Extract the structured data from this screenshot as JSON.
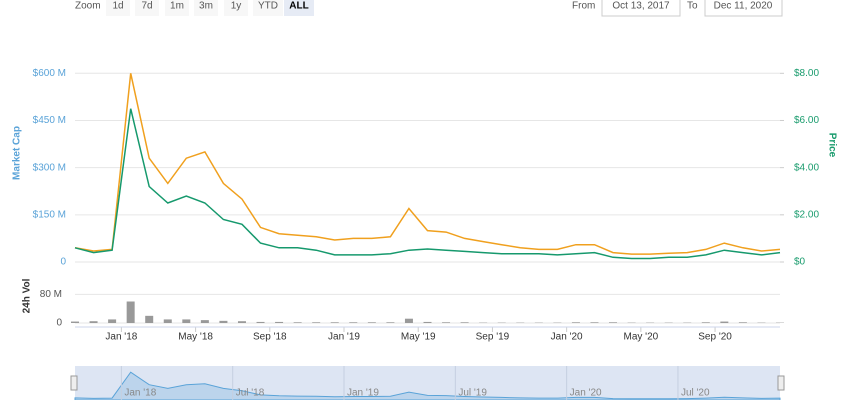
{
  "controls": {
    "zoom_label": "Zoom",
    "zoom_options": [
      "1d",
      "7d",
      "1m",
      "3m",
      "1y",
      "YTD",
      "ALL"
    ],
    "selected": "ALL",
    "from_label": "From",
    "from_value": "Oct 13, 2017",
    "to_label": "To",
    "to_value": "Dec 11, 2020"
  },
  "chart_data": [
    {
      "type": "line",
      "x": [
        "2017-10",
        "2017-11",
        "2017-12",
        "2018-01",
        "2018-02",
        "2018-03",
        "2018-04",
        "2018-05",
        "2018-06",
        "2018-07",
        "2018-08",
        "2018-09",
        "2018-10",
        "2018-11",
        "2018-12",
        "2019-01",
        "2019-02",
        "2019-03",
        "2019-04",
        "2019-05",
        "2019-06",
        "2019-07",
        "2019-08",
        "2019-09",
        "2019-10",
        "2019-11",
        "2019-12",
        "2020-01",
        "2020-02",
        "2020-03",
        "2020-04",
        "2020-05",
        "2020-06",
        "2020-07",
        "2020-08",
        "2020-09",
        "2020-10",
        "2020-11",
        "2020-12"
      ],
      "series": [
        {
          "color": "#f0a01e",
          "axis": "y",
          "values": [
            45,
            35,
            40,
            600,
            330,
            250,
            330,
            350,
            250,
            200,
            110,
            90,
            85,
            80,
            70,
            75,
            75,
            80,
            170,
            100,
            95,
            75,
            65,
            55,
            45,
            40,
            40,
            55,
            55,
            30,
            25,
            25,
            28,
            30,
            40,
            60,
            45,
            35,
            40
          ]
        },
        {
          "color": "#16996d",
          "axis": "y2",
          "values": [
            0.6,
            0.4,
            0.5,
            6.5,
            3.2,
            2.5,
            2.8,
            2.5,
            1.8,
            1.6,
            0.8,
            0.6,
            0.6,
            0.5,
            0.3,
            0.3,
            0.3,
            0.35,
            0.5,
            0.55,
            0.5,
            0.45,
            0.4,
            0.35,
            0.35,
            0.35,
            0.3,
            0.35,
            0.4,
            0.2,
            0.15,
            0.15,
            0.2,
            0.2,
            0.3,
            0.5,
            0.4,
            0.3,
            0.4
          ]
        }
      ],
      "y_label": "Market Cap",
      "y2_label": "Price",
      "ylim": [
        0,
        690
      ],
      "yticks": [
        0,
        {
          "value": 150,
          "label": "$150 M"
        },
        {
          "value": 300,
          "label": "$300 M"
        },
        {
          "value": 450,
          "label": "$450 M"
        },
        {
          "value": 600,
          "label": "$600 M"
        }
      ],
      "y2lim": [
        0,
        9.2
      ],
      "y2ticks": [
        {
          "value": 0,
          "label": "$0"
        },
        {
          "value": 2,
          "label": "$2.00"
        },
        {
          "value": 4,
          "label": "$4.00"
        },
        {
          "value": 6,
          "label": "$6.00"
        },
        {
          "value": 8,
          "label": "$8.00"
        }
      ],
      "xticks": [
        {
          "value": "2018-01",
          "label": "Jan '18"
        },
        {
          "value": "2018-05",
          "label": "May '18"
        },
        {
          "value": "2018-09",
          "label": "Sep '18"
        },
        {
          "value": "2019-01",
          "label": "Jan '19"
        },
        {
          "value": "2019-05",
          "label": "May '19"
        },
        {
          "value": "2019-09",
          "label": "Sep '19"
        },
        {
          "value": "2020-01",
          "label": "Jan '20"
        },
        {
          "value": "2020-05",
          "label": "May '20"
        },
        {
          "value": "2020-09",
          "label": "Sep '20"
        }
      ]
    },
    {
      "type": "bar",
      "y_label": "24h Vol",
      "color": "#999999",
      "x": [
        "2017-10",
        "2017-11",
        "2017-12",
        "2018-01",
        "2018-02",
        "2018-03",
        "2018-04",
        "2018-05",
        "2018-06",
        "2018-07",
        "2018-08",
        "2018-09",
        "2018-10",
        "2018-11",
        "2018-12",
        "2019-01",
        "2019-02",
        "2019-03",
        "2019-04",
        "2019-05",
        "2019-06",
        "2019-07",
        "2019-08",
        "2019-09",
        "2019-10",
        "2019-11",
        "2019-12",
        "2020-01",
        "2020-02",
        "2020-03",
        "2020-04",
        "2020-05",
        "2020-06",
        "2020-07",
        "2020-08",
        "2020-09",
        "2020-10",
        "2020-11",
        "2020-12"
      ],
      "values": [
        4,
        5,
        10,
        60,
        20,
        10,
        10,
        8,
        6,
        5,
        3,
        3,
        2,
        2,
        2,
        2,
        2,
        2,
        12,
        3,
        2,
        2,
        1,
        1,
        1,
        1,
        1,
        2,
        2,
        2,
        1,
        1,
        1,
        1,
        2,
        4,
        2,
        1,
        1
      ],
      "ylim": [
        0,
        120
      ],
      "yticks": [
        0,
        {
          "value": 80,
          "label": "80 M"
        }
      ]
    },
    {
      "type": "navigator",
      "xticks": [
        {
          "value": "2018-01",
          "label": "Jan '18"
        },
        {
          "value": "2018-07",
          "label": "Jul '18"
        },
        {
          "value": "2019-01",
          "label": "Jan '19"
        },
        {
          "value": "2019-07",
          "label": "Jul '19"
        },
        {
          "value": "2020-01",
          "label": "Jan '20"
        },
        {
          "value": "2020-07",
          "label": "Jul '20"
        }
      ]
    }
  ]
}
